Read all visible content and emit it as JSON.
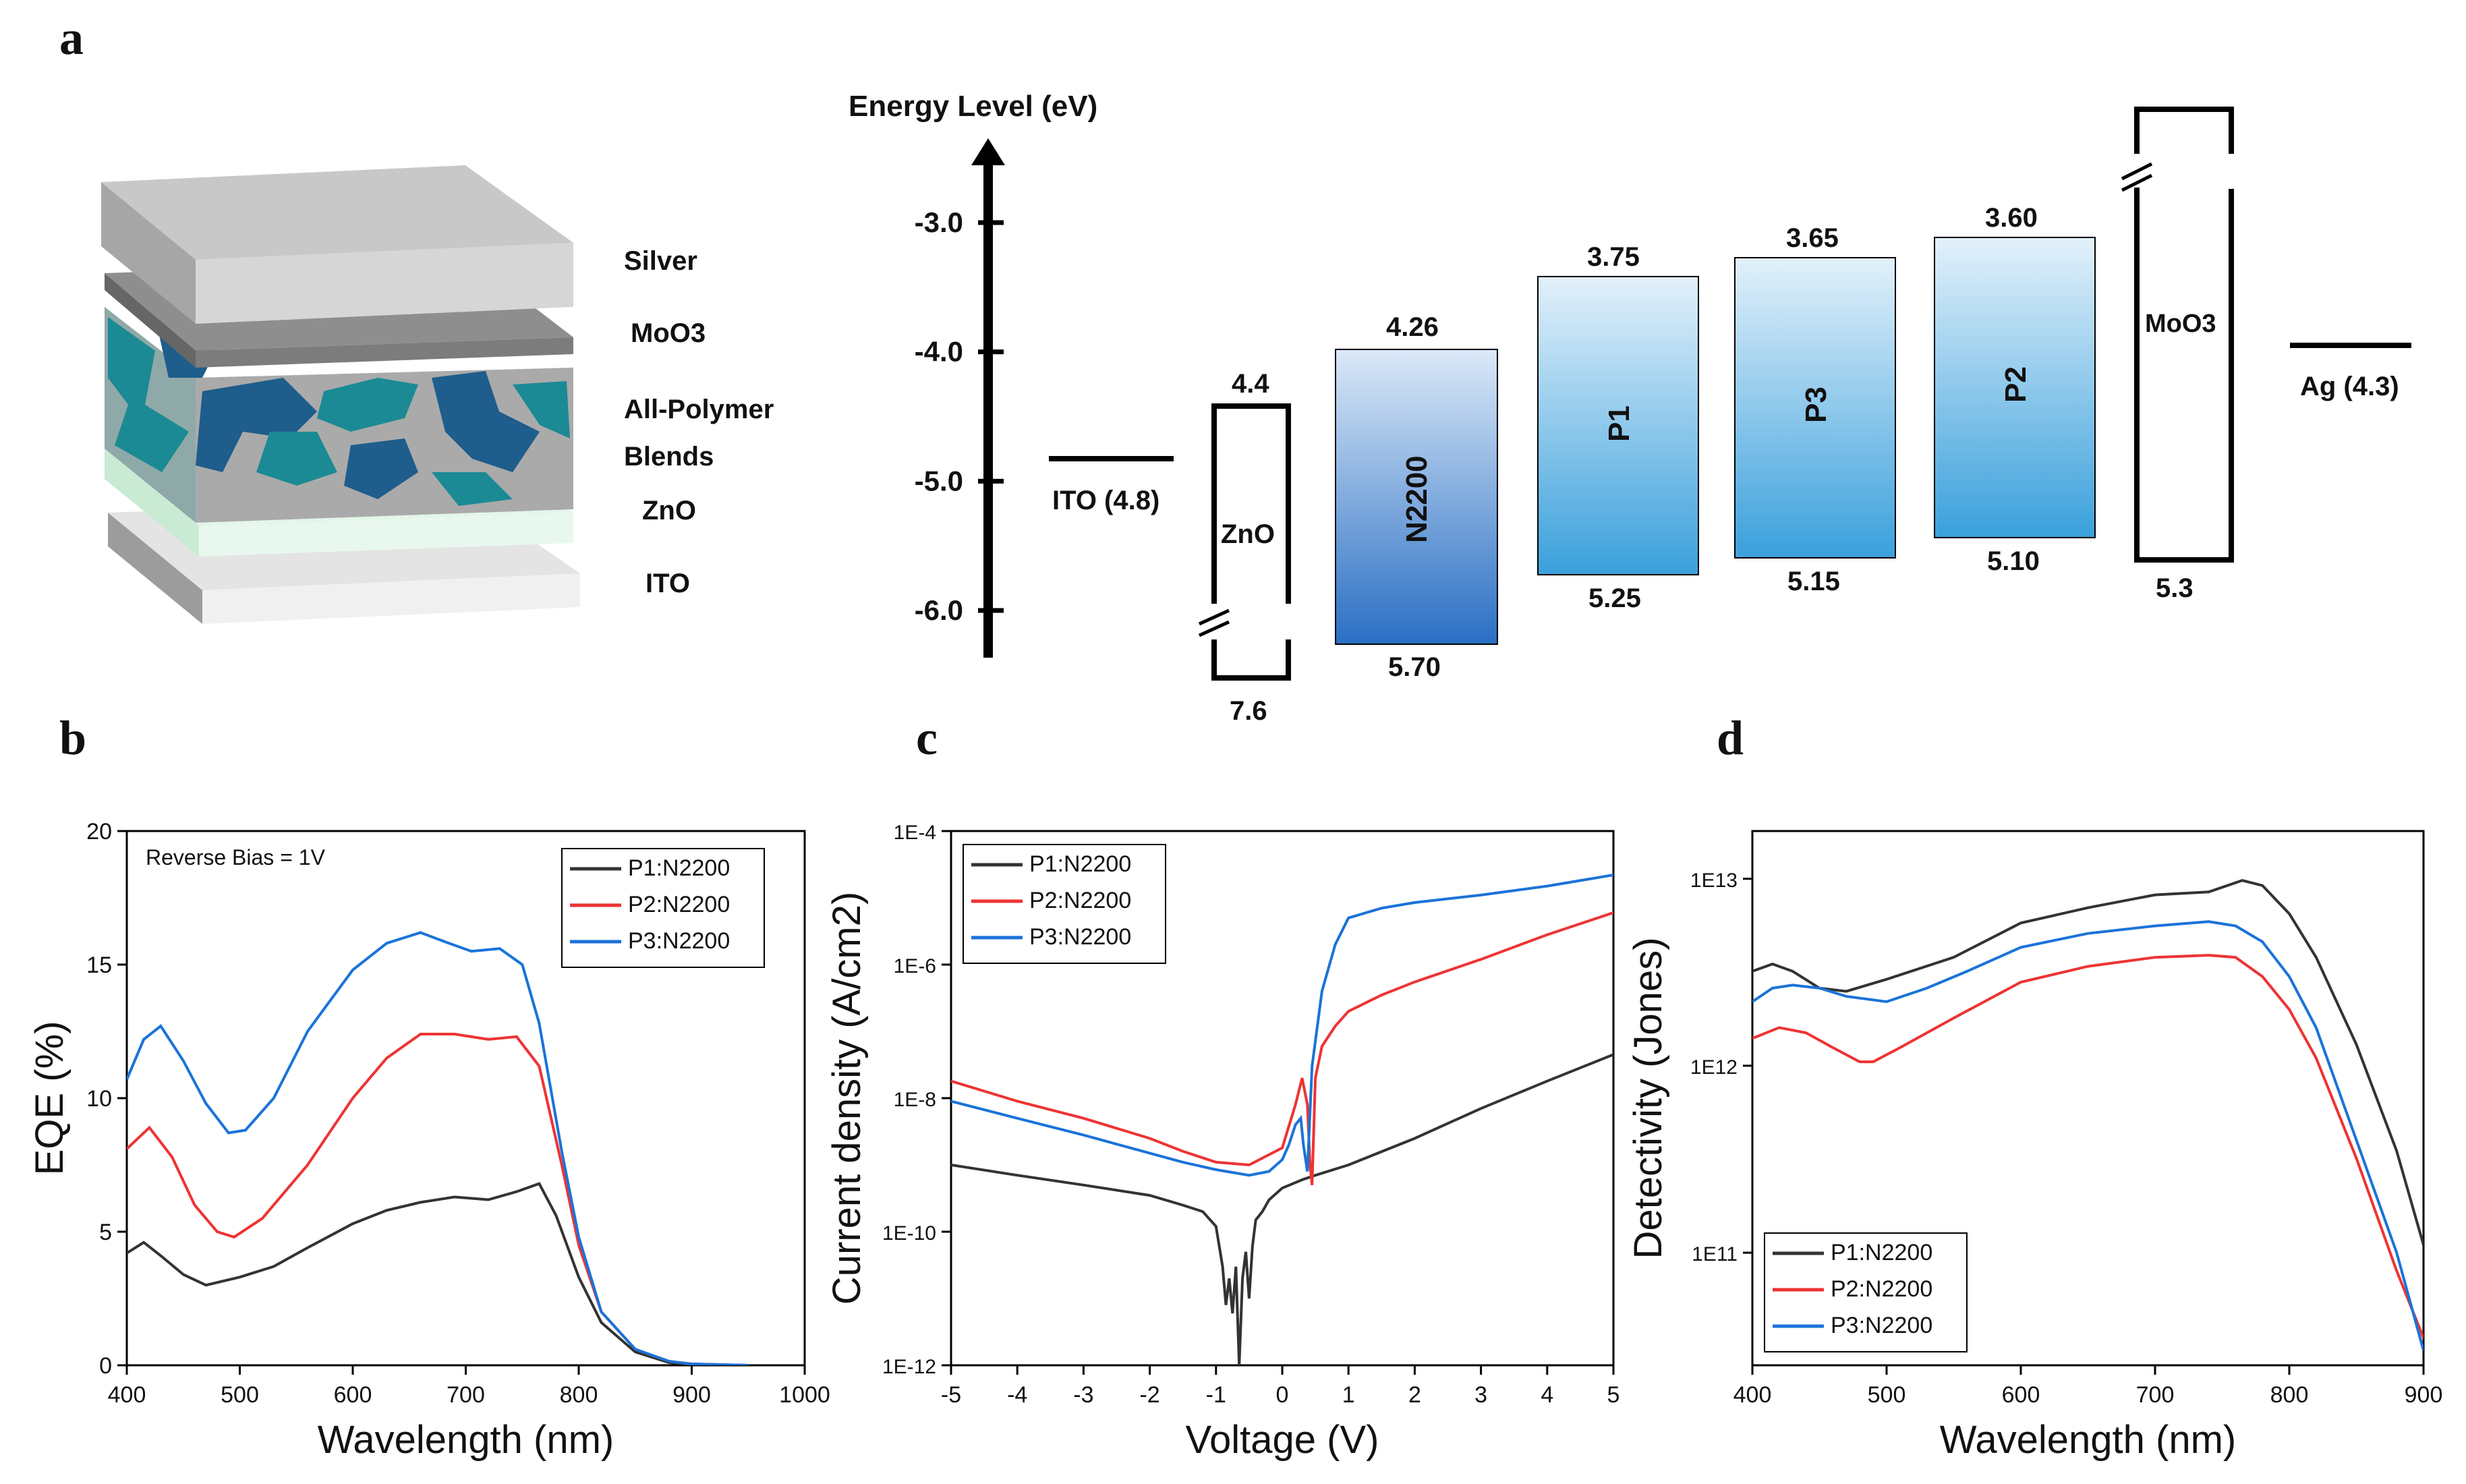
{
  "panels": {
    "a": "a",
    "b": "b",
    "c": "c",
    "d": "d"
  },
  "stack": {
    "layers": [
      "Silver",
      "MoO3",
      "All-Polymer",
      "Blends",
      "ZnO",
      "ITO"
    ]
  },
  "energy": {
    "axis_title": "Energy Level (eV)",
    "ticks": [
      "-3.0",
      "-4.0",
      "-5.0",
      "-6.0"
    ],
    "tick_values": [
      -3.0,
      -4.0,
      -5.0,
      -6.0
    ],
    "ito": {
      "label": "ITO (4.8)",
      "value": 4.8
    },
    "zno": {
      "label": "ZnO",
      "top": "4.4",
      "bottom": "7.6"
    },
    "n2200": {
      "label": "N2200",
      "top": "4.26",
      "bottom": "5.70"
    },
    "p1": {
      "label": "P1",
      "top": "3.75",
      "bottom": "5.25"
    },
    "p3": {
      "label": "P3",
      "top": "3.65",
      "bottom": "5.15"
    },
    "p2": {
      "label": "P2",
      "top": "3.60",
      "bottom": "5.10"
    },
    "moo3": {
      "label": "MoO3",
      "bottom": "5.3"
    },
    "ag": {
      "label": "Ag (4.3)",
      "value": 4.3
    }
  },
  "chart_data": [
    {
      "type": "line",
      "panel": "b",
      "xlabel": "Wavelength (nm)",
      "ylabel": "EQE (%)",
      "xlim": [
        400,
        1000
      ],
      "ylim": [
        0,
        20
      ],
      "xticks": [
        400,
        500,
        600,
        700,
        800,
        900,
        1000
      ],
      "yticks": [
        0,
        5,
        10,
        15,
        20
      ],
      "annotation": "Reverse Bias = 1V",
      "legend": "top-right",
      "series": [
        {
          "name": "P1:N2200",
          "color": "#333333",
          "x": [
            400,
            415,
            430,
            450,
            470,
            500,
            530,
            560,
            600,
            630,
            660,
            690,
            720,
            745,
            765,
            780,
            800,
            820,
            850,
            880,
            900,
            950
          ],
          "y": [
            4.2,
            4.6,
            4.1,
            3.4,
            3.0,
            3.3,
            3.7,
            4.4,
            5.3,
            5.8,
            6.1,
            6.3,
            6.2,
            6.5,
            6.8,
            5.6,
            3.3,
            1.6,
            0.5,
            0.1,
            0.03,
            0
          ]
        },
        {
          "name": "P2:N2200",
          "color": "#ee3333",
          "x": [
            400,
            420,
            440,
            460,
            480,
            495,
            520,
            560,
            600,
            630,
            660,
            690,
            720,
            745,
            765,
            785,
            800,
            820,
            850,
            880,
            900,
            950
          ],
          "y": [
            8.1,
            8.9,
            7.8,
            6.0,
            5.0,
            4.8,
            5.5,
            7.5,
            10.0,
            11.5,
            12.4,
            12.4,
            12.2,
            12.3,
            11.2,
            7.5,
            4.5,
            2.0,
            0.6,
            0.15,
            0.05,
            0
          ]
        },
        {
          "name": "P3:N2200",
          "color": "#1a73d9",
          "x": [
            400,
            415,
            430,
            450,
            470,
            490,
            505,
            530,
            560,
            600,
            630,
            660,
            685,
            705,
            730,
            750,
            765,
            785,
            800,
            820,
            850,
            880,
            900,
            950
          ],
          "y": [
            10.7,
            12.2,
            12.7,
            11.4,
            9.8,
            8.7,
            8.8,
            10.0,
            12.5,
            14.8,
            15.8,
            16.2,
            15.8,
            15.5,
            15.6,
            15.0,
            12.8,
            8.0,
            4.8,
            2.0,
            0.6,
            0.15,
            0.05,
            0
          ]
        }
      ]
    },
    {
      "type": "line",
      "panel": "c",
      "xlabel": "Voltage (V)",
      "ylabel": "Current density (A/cm2)",
      "xlim": [
        -5,
        5
      ],
      "ylim": [
        1e-12,
        0.0001
      ],
      "yscale": "log",
      "xticks": [
        -5,
        -4,
        -3,
        -2,
        -1,
        0,
        1,
        2,
        3,
        4,
        5
      ],
      "yticks": [
        "1E-12",
        "1E-10",
        "1E-8",
        "1E-6",
        "1E-4"
      ],
      "legend": "top-left",
      "series": [
        {
          "name": "P1:N2200",
          "color": "#333333",
          "x": [
            -5,
            -4,
            -3,
            -2,
            -1.5,
            -1.2,
            -1.0,
            -0.9,
            -0.85,
            -0.8,
            -0.75,
            -0.7,
            -0.65,
            -0.6,
            -0.55,
            -0.5,
            -0.45,
            -0.4,
            -0.3,
            -0.2,
            0,
            0.3,
            0.5,
            1,
            2,
            3,
            4,
            5
          ],
          "y": [
            1e-09,
            7e-10,
            5e-10,
            3.5e-10,
            2.5e-10,
            2e-10,
            1.2e-10,
            3e-11,
            8e-12,
            2e-11,
            6e-12,
            3e-11,
            1e-12,
            2e-11,
            5e-11,
            1e-11,
            6e-11,
            1.5e-10,
            2e-10,
            3e-10,
            4.5e-10,
            6e-10,
            7e-10,
            1e-09,
            2.5e-09,
            7e-09,
            1.8e-08,
            4.5e-08
          ]
        },
        {
          "name": "P2:N2200",
          "color": "#ee3333",
          "x": [
            -5,
            -4,
            -3,
            -2,
            -1.5,
            -1,
            -0.5,
            0,
            0.2,
            0.3,
            0.38,
            0.42,
            0.45,
            0.5,
            0.6,
            0.8,
            1,
            1.5,
            2,
            3,
            4,
            5
          ],
          "y": [
            1.8e-08,
            9e-09,
            5e-09,
            2.5e-09,
            1.6e-09,
            1.1e-09,
            1e-09,
            1.8e-09,
            8e-09,
            2e-08,
            8e-09,
            1e-09,
            5e-10,
            2e-08,
            6e-08,
            1.2e-07,
            2e-07,
            3.5e-07,
            5.5e-07,
            1.2e-06,
            2.8e-06,
            6e-06
          ]
        },
        {
          "name": "P3:N2200",
          "color": "#1a73d9",
          "x": [
            -5,
            -4,
            -3,
            -2,
            -1.5,
            -1,
            -0.5,
            -0.2,
            0,
            0.1,
            0.2,
            0.28,
            0.32,
            0.38,
            0.45,
            0.6,
            0.8,
            1,
            1.5,
            2,
            3,
            4,
            5
          ],
          "y": [
            9e-09,
            5e-09,
            2.8e-09,
            1.5e-09,
            1.1e-09,
            8.5e-10,
            7e-10,
            8e-10,
            1.2e-09,
            2e-09,
            4e-09,
            5e-09,
            2e-09,
            8e-10,
            3e-08,
            4e-07,
            2e-06,
            5e-06,
            7e-06,
            8.5e-06,
            1.1e-05,
            1.5e-05,
            2.2e-05
          ]
        }
      ]
    },
    {
      "type": "line",
      "panel": "d",
      "xlabel": "Wavelength (nm)",
      "ylabel": "Detectivity (Jones)",
      "xlim": [
        400,
        900
      ],
      "ylim": [
        25000000000.0,
        18000000000000.0
      ],
      "yscale": "log",
      "xticks": [
        400,
        500,
        600,
        700,
        800,
        900
      ],
      "yticks": [
        "1E11",
        "1E12",
        "1E13"
      ],
      "legend": "bottom-left",
      "series": [
        {
          "name": "P1:N2200",
          "color": "#333333",
          "x": [
            400,
            415,
            430,
            450,
            470,
            500,
            550,
            600,
            650,
            700,
            740,
            765,
            780,
            800,
            820,
            850,
            880,
            900
          ],
          "y": [
            3200000000000.0,
            3500000000000.0,
            3200000000000.0,
            2600000000000.0,
            2500000000000.0,
            2900000000000.0,
            3800000000000.0,
            5800000000000.0,
            7000000000000.0,
            8200000000000.0,
            8500000000000.0,
            9800000000000.0,
            9200000000000.0,
            6500000000000.0,
            3800000000000.0,
            1300000000000.0,
            350000000000.0,
            110000000000.0
          ]
        },
        {
          "name": "P2:N2200",
          "color": "#ee3333",
          "x": [
            400,
            420,
            440,
            460,
            480,
            490,
            510,
            550,
            600,
            650,
            700,
            740,
            760,
            780,
            800,
            820,
            850,
            880,
            900
          ],
          "y": [
            1400000000000.0,
            1600000000000.0,
            1500000000000.0,
            1250000000000.0,
            1050000000000.0,
            1050000000000.0,
            1250000000000.0,
            1800000000000.0,
            2800000000000.0,
            3400000000000.0,
            3800000000000.0,
            3900000000000.0,
            3800000000000.0,
            3000000000000.0,
            2000000000000.0,
            1100000000000.0,
            320000000000.0,
            80000000000.0,
            35000000000.0
          ]
        },
        {
          "name": "P3:N2200",
          "color": "#1a73d9",
          "x": [
            400,
            415,
            430,
            450,
            470,
            500,
            530,
            560,
            600,
            650,
            700,
            740,
            760,
            780,
            800,
            820,
            850,
            880,
            900
          ],
          "y": [
            2200000000000.0,
            2600000000000.0,
            2700000000000.0,
            2600000000000.0,
            2350000000000.0,
            2200000000000.0,
            2600000000000.0,
            3200000000000.0,
            4300000000000.0,
            5100000000000.0,
            5600000000000.0,
            5900000000000.0,
            5600000000000.0,
            4600000000000.0,
            3000000000000.0,
            1600000000000.0,
            400000000000.0,
            100000000000.0,
            30000000000.0
          ]
        }
      ]
    }
  ]
}
